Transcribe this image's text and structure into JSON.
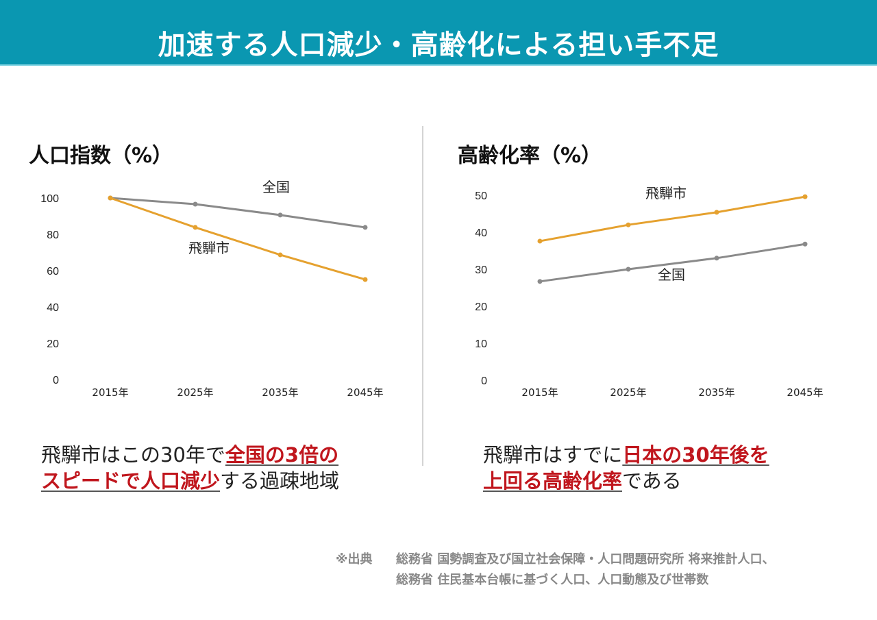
{
  "header": {
    "title": "加速する人口減少・高齢化による担い手不足",
    "background": "#0A97B1"
  },
  "colors": {
    "hida": "#E5A12F",
    "national": "#8A8A8A",
    "highlight": "#C0161D"
  },
  "chart_data": [
    {
      "type": "line",
      "title": "人口指数（%）",
      "categories": [
        "2015年",
        "2025年",
        "2035年",
        "2045年"
      ],
      "yticks": [
        0,
        20,
        40,
        60,
        80,
        100
      ],
      "ylim": [
        0,
        100
      ],
      "grid": false,
      "series": [
        {
          "name": "全国",
          "values": [
            100,
            96.6,
            90.6,
            83.8
          ],
          "color": "#8A8A8A"
        },
        {
          "name": "飛騨市",
          "values": [
            100,
            83.8,
            68.7,
            55.1
          ],
          "color": "#E5A12F"
        }
      ]
    },
    {
      "type": "line",
      "title": "高齢化率（%）",
      "categories": [
        "2015年",
        "2025年",
        "2035年",
        "2045年"
      ],
      "yticks": [
        0,
        10,
        20,
        30,
        40,
        50
      ],
      "ylim": [
        0,
        50
      ],
      "grid": false,
      "series": [
        {
          "name": "飛騨市",
          "values": [
            37.6,
            42.0,
            45.4,
            49.6
          ],
          "color": "#E5A12F"
        },
        {
          "name": "全国",
          "values": [
            26.7,
            30.0,
            33.0,
            36.8
          ],
          "color": "#8A8A8A"
        }
      ]
    }
  ],
  "captions": {
    "left": {
      "line1_plain": "飛騨市はこの30年で",
      "line1_highlight": "全国の3倍の",
      "line2_highlight": "スピードで人口減少",
      "line2_plain": "する過疎地域"
    },
    "right": {
      "line1_plain": "飛騨市はすでに",
      "line1_highlight": "日本の30年後を",
      "line2_highlight": "上回る高齢化率",
      "line2_plain": "である"
    }
  },
  "source": {
    "label": "※出典",
    "line1": "総務省 国勢調査及び国立社会保障・人口問題研究所 将来推計人口、",
    "line2": "総務省 住民基本台帳に基づく人口、人口動態及び世帯数"
  }
}
